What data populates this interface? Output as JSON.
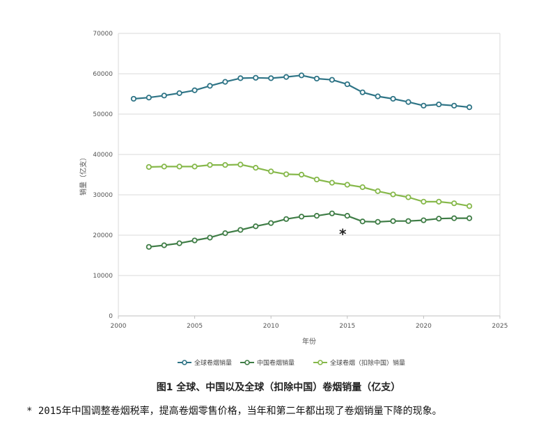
{
  "chart_data": {
    "type": "line",
    "title": "图1 全球、中国以及全球（扣除中国）卷烟销量（亿支）",
    "xlabel": "年份",
    "ylabel": "销量（亿支）",
    "xlim": [
      2000,
      2025
    ],
    "ylim": [
      0,
      70000
    ],
    "x_ticks": [
      "2000",
      "2005",
      "2010",
      "2015",
      "2020",
      "2025"
    ],
    "y_ticks": [
      "0",
      "10000",
      "20000",
      "30000",
      "40000",
      "50000",
      "60000",
      "70000"
    ],
    "grid": "horizontal",
    "legend_position": "bottom",
    "annotation": "*",
    "series": [
      {
        "name": "全球卷烟销量",
        "color": "#2e7486",
        "x": [
          2001,
          2002,
          2003,
          2004,
          2005,
          2006,
          2007,
          2008,
          2009,
          2010,
          2011,
          2012,
          2013,
          2014,
          2015,
          2016,
          2017,
          2018,
          2019,
          2020,
          2021,
          2022,
          2023
        ],
        "values": [
          53800,
          54100,
          54600,
          55200,
          55900,
          57000,
          58000,
          58900,
          59000,
          58900,
          59200,
          59600,
          58800,
          58500,
          57400,
          55400,
          54400,
          53800,
          53000,
          52100,
          52400,
          52100,
          51700
        ]
      },
      {
        "name": "中国卷烟销量",
        "color": "#3f7d46",
        "x": [
          2002,
          2003,
          2004,
          2005,
          2006,
          2007,
          2008,
          2009,
          2010,
          2011,
          2012,
          2013,
          2014,
          2015,
          2016,
          2017,
          2018,
          2019,
          2020,
          2021,
          2022,
          2023
        ],
        "values": [
          17100,
          17500,
          18000,
          18700,
          19400,
          20500,
          21300,
          22200,
          23000,
          24000,
          24600,
          24800,
          25400,
          24800,
          23400,
          23300,
          23500,
          23500,
          23700,
          24100,
          24200,
          24200
        ]
      },
      {
        "name": "全球卷烟（扣除中国）销量",
        "color": "#86b84a",
        "x": [
          2002,
          2003,
          2004,
          2005,
          2006,
          2007,
          2008,
          2009,
          2010,
          2011,
          2012,
          2013,
          2014,
          2015,
          2016,
          2017,
          2018,
          2019,
          2020,
          2021,
          2022,
          2023
        ],
        "values": [
          36900,
          37000,
          37000,
          37000,
          37400,
          37400,
          37500,
          36700,
          35800,
          35100,
          35000,
          33800,
          33000,
          32500,
          31900,
          30900,
          30100,
          29400,
          28300,
          28300,
          27900,
          27200
        ]
      }
    ]
  },
  "footnote": "* 2015年中国调整卷烟税率，提高卷烟零售价格，当年和第二年都出现了卷烟销量下降的现象。"
}
